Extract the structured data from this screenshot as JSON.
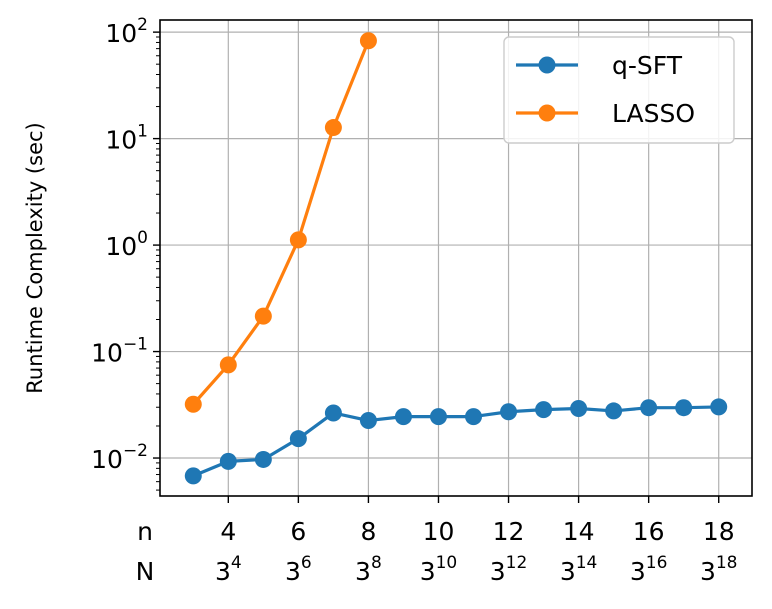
{
  "chart_data": {
    "type": "line",
    "xlabel": "",
    "ylabel": "Runtime Complexity (sec)",
    "yscale": "log",
    "ylim": [
      0.0044,
      130
    ],
    "xlim": [
      2.05,
      18.95
    ],
    "grid": true,
    "legend_position": "top-right",
    "x_row_labels": [
      "n",
      "N"
    ],
    "x_ticks": [
      {
        "n": "4",
        "base": "3",
        "exp": "4"
      },
      {
        "n": "6",
        "base": "3",
        "exp": "6"
      },
      {
        "n": "8",
        "base": "3",
        "exp": "8"
      },
      {
        "n": "10",
        "base": "3",
        "exp": "10"
      },
      {
        "n": "12",
        "base": "3",
        "exp": "12"
      },
      {
        "n": "14",
        "base": "3",
        "exp": "14"
      },
      {
        "n": "16",
        "base": "3",
        "exp": "16"
      },
      {
        "n": "18",
        "base": "3",
        "exp": "18"
      }
    ],
    "y_ticks": [
      {
        "base": "10",
        "exp": "−2",
        "value": 0.01
      },
      {
        "base": "10",
        "exp": "−1",
        "value": 0.1
      },
      {
        "base": "10",
        "exp": "0",
        "value": 1
      },
      {
        "base": "10",
        "exp": "1",
        "value": 10
      },
      {
        "base": "10",
        "exp": "2",
        "value": 100
      }
    ],
    "series": [
      {
        "name": "q-SFT",
        "color": "#1f77b4",
        "x": [
          3,
          4,
          5,
          6,
          7,
          8,
          9,
          10,
          11,
          12,
          13,
          14,
          15,
          16,
          17,
          18
        ],
        "values": [
          0.0068,
          0.0093,
          0.0097,
          0.0152,
          0.0265,
          0.0225,
          0.0245,
          0.0245,
          0.0245,
          0.0272,
          0.0285,
          0.0292,
          0.0277,
          0.0297,
          0.0297,
          0.0302
        ]
      },
      {
        "name": "LASSO",
        "color": "#ff7f0e",
        "x": [
          3,
          4,
          5,
          6,
          7,
          8
        ],
        "values": [
          0.032,
          0.075,
          0.215,
          1.12,
          12.7,
          83
        ]
      }
    ]
  }
}
